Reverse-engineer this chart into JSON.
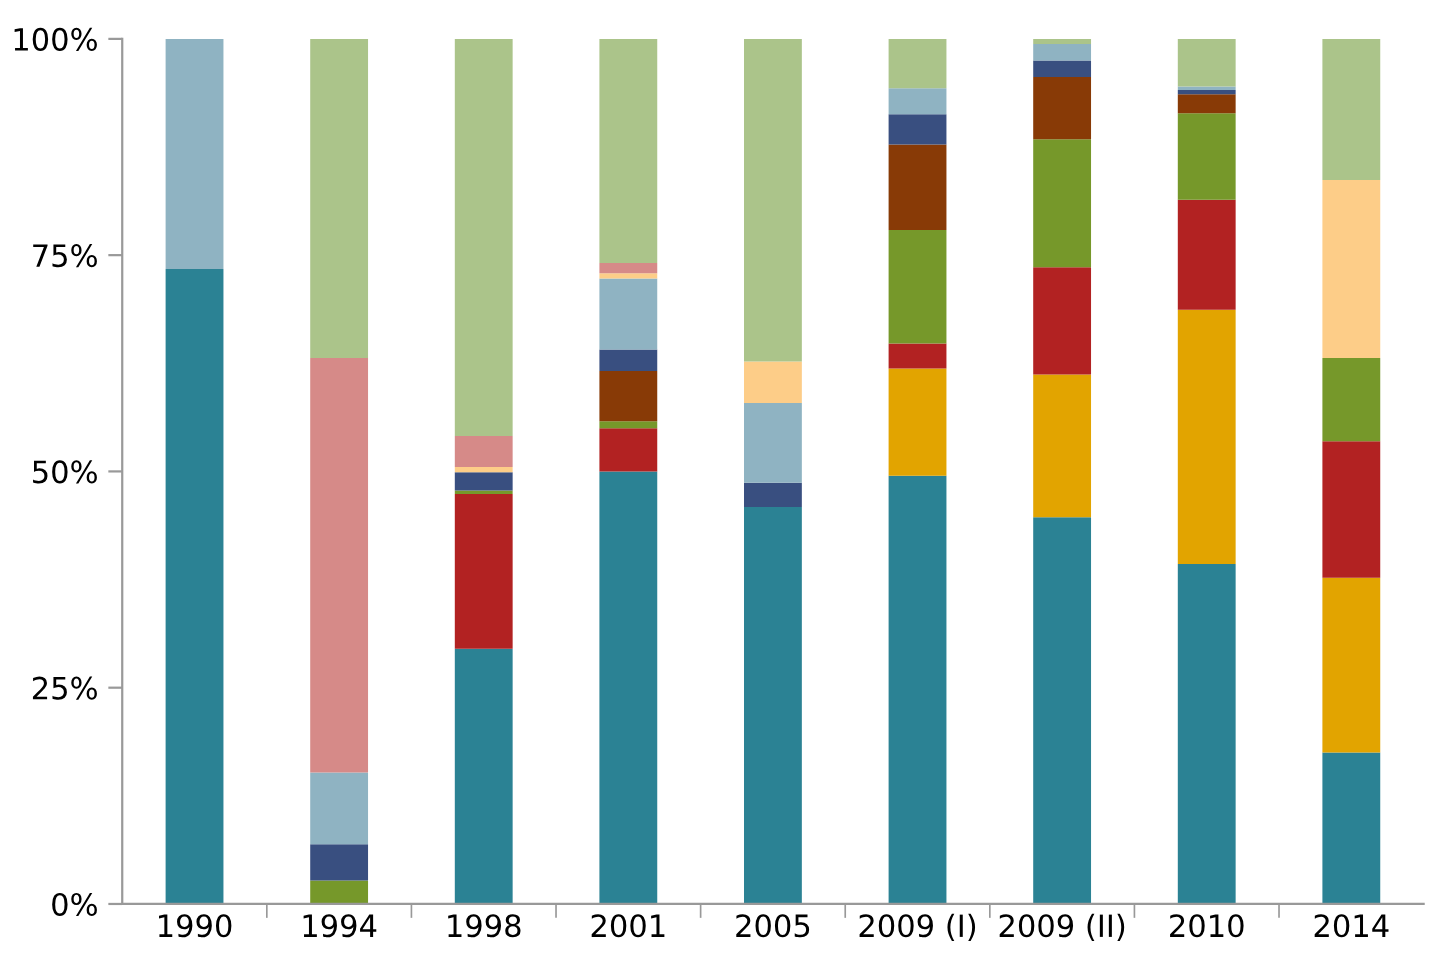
{
  "chart_data": {
    "type": "bar",
    "stacked": true,
    "categories": [
      "1990",
      "1994",
      "1998",
      "2001",
      "2005",
      "2009 (I)",
      "2009 (II)",
      "2010",
      "2014"
    ],
    "series": [
      {
        "color": "#2b8294",
        "values": [
          73.4,
          null,
          29.5,
          50,
          45.9,
          49.5,
          44.7,
          39.3,
          17.5
        ]
      },
      {
        "color": "#e2a400",
        "values": [
          null,
          null,
          null,
          null,
          null,
          12.4,
          16.5,
          29.4,
          20.2
        ]
      },
      {
        "color": "#b22222",
        "values": [
          null,
          null,
          17.9,
          5,
          null,
          2.9,
          12.4,
          12.7,
          15.8
        ]
      },
      {
        "color": "#76982a",
        "values": [
          null,
          2.7,
          0.4,
          0.8,
          null,
          13.1,
          14.8,
          10,
          9.6
        ]
      },
      {
        "color": "#883a06",
        "values": [
          null,
          null,
          null,
          5.8,
          null,
          9.9,
          7.2,
          2.2,
          null
        ]
      },
      {
        "color": "#394f80",
        "values": [
          null,
          4.2,
          2.1,
          2.5,
          2.8,
          3.5,
          1.9,
          0.5,
          null
        ]
      },
      {
        "color": "#8fb3c2",
        "values": [
          26.6,
          8.3,
          null,
          8.2,
          9.2,
          3.0,
          1.9,
          0.4,
          null
        ]
      },
      {
        "color": "#fdcd88",
        "values": [
          null,
          null,
          0.6,
          0.6,
          4.8,
          null,
          null,
          null,
          20.6
        ]
      },
      {
        "color": "#d68a88",
        "values": [
          null,
          47.9,
          3.6,
          1.2,
          null,
          null,
          null,
          null,
          null
        ]
      },
      {
        "color": "#abc48a",
        "values": [
          null,
          36.9,
          45.9,
          25.9,
          37.3,
          5.7,
          0.6,
          5.5,
          16.3
        ]
      }
    ],
    "ylim": [
      0,
      100
    ],
    "yticks": [
      {
        "value": 0,
        "label": "0%"
      },
      {
        "value": 25,
        "label": "25%"
      },
      {
        "value": 50,
        "label": "50%"
      },
      {
        "value": 75,
        "label": "75%"
      },
      {
        "value": 100,
        "label": "100%"
      }
    ],
    "grid": false,
    "legend": false
  }
}
